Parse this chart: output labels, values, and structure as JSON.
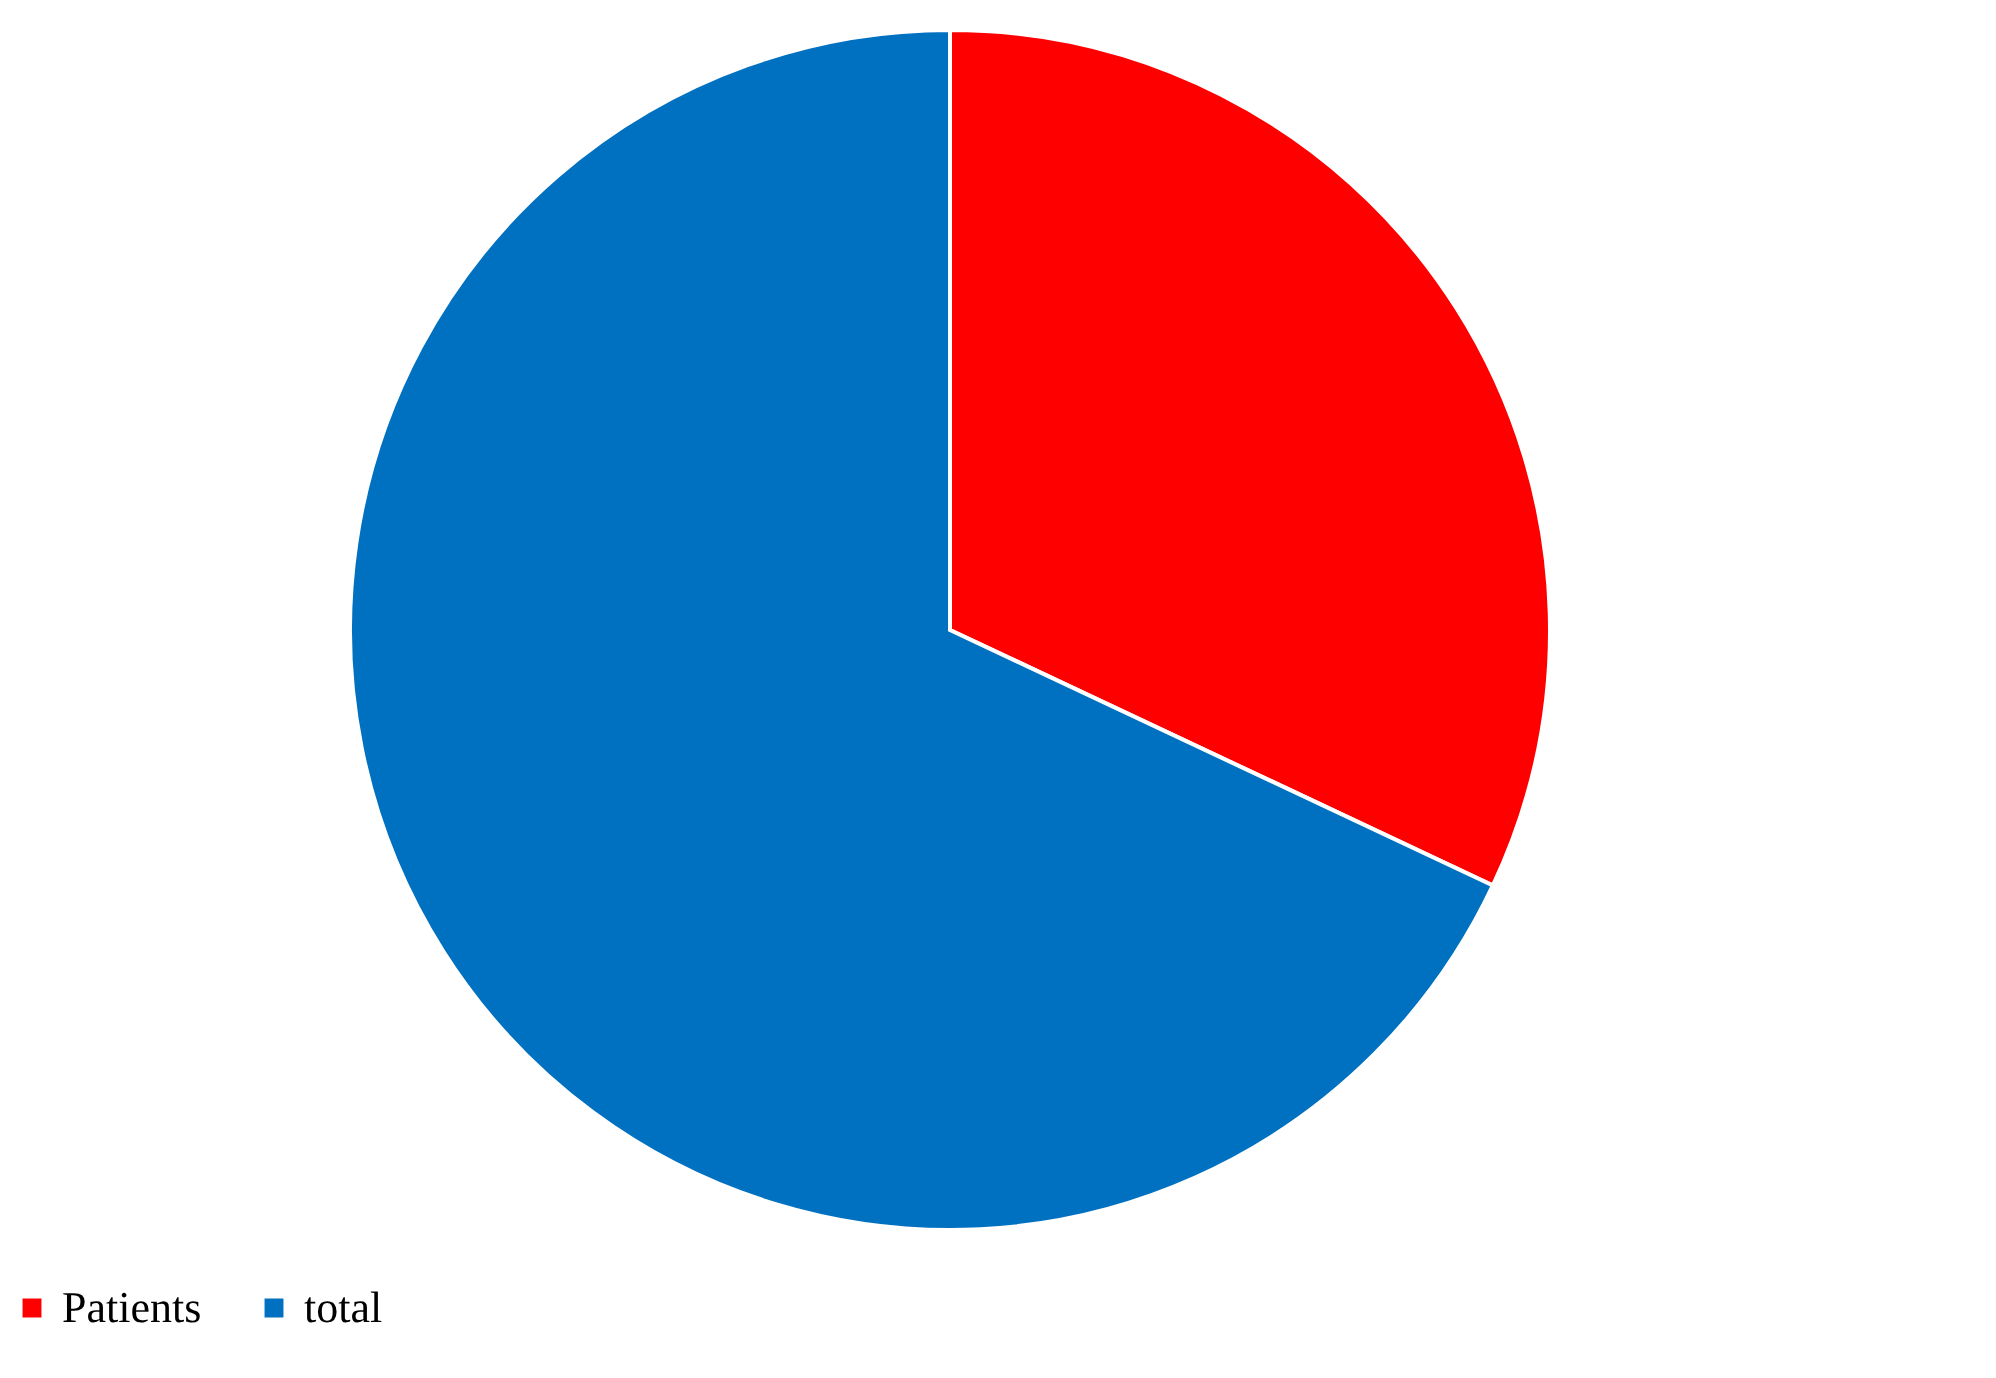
{
  "chart_data": {
    "type": "pie",
    "categories": [
      "Patients",
      "total"
    ],
    "values": [
      32,
      68
    ],
    "colors": [
      "#ff0000",
      "#0070c0"
    ],
    "legend": "bottom"
  }
}
